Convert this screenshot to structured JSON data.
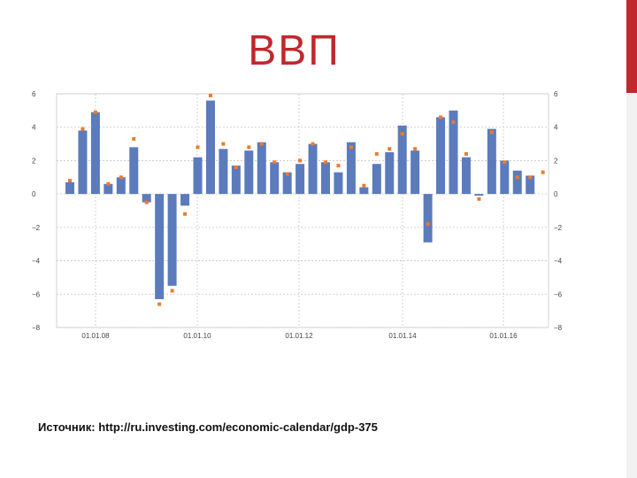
{
  "slide": {
    "title": "ВВП",
    "source": "Источник: http://ru.investing.com/economic-calendar/gdp-375"
  },
  "colors": {
    "title": "#c0282d",
    "bar": "#5b7bbd",
    "marker": "#ee7a2a",
    "grid": "#c8c8c8",
    "accent_bar": "#c0282d"
  },
  "chart_data": {
    "type": "bar",
    "title": "",
    "xlabel": "",
    "ylabel": "",
    "ylim": [
      -8,
      6
    ],
    "y_ticks": [
      6,
      4,
      2,
      0,
      -2,
      -4,
      -6,
      -8
    ],
    "y_tick_labels": [
      "6",
      "4",
      "2",
      "0",
      "−2",
      "−4",
      "−6",
      "−8"
    ],
    "grid": true,
    "secondary_y_axis": true,
    "x_tick_labels": [
      "01.01.08",
      "01.01.10",
      "01.01.12",
      "01.01.14",
      "01.01.16"
    ],
    "series": [
      {
        "type": "bar",
        "values": [
          0.7,
          3.8,
          4.9,
          0.6,
          1.0,
          2.8,
          -0.5,
          -6.3,
          -5.5,
          -0.7,
          2.2,
          5.6,
          2.7,
          1.7,
          2.6,
          3.1,
          1.9,
          1.3,
          1.8,
          3.0,
          1.9,
          1.3,
          3.1,
          0.4,
          1.8,
          2.5,
          4.1,
          2.6,
          -2.9,
          4.6,
          5.0,
          2.2,
          -0.1,
          3.9,
          2.0,
          1.4,
          1.1,
          null
        ]
      },
      {
        "type": "scatter",
        "values": [
          0.8,
          3.9,
          4.9,
          0.6,
          1.0,
          3.3,
          -0.5,
          -6.6,
          -5.8,
          -1.2,
          2.8,
          5.9,
          3.0,
          1.6,
          2.8,
          3.0,
          1.9,
          1.2,
          2.0,
          3.0,
          1.9,
          1.7,
          2.8,
          0.5,
          2.4,
          2.7,
          3.6,
          2.7,
          -1.8,
          4.6,
          4.3,
          2.4,
          -0.3,
          3.7,
          1.9,
          1.0,
          1.0,
          1.3
        ]
      }
    ]
  }
}
